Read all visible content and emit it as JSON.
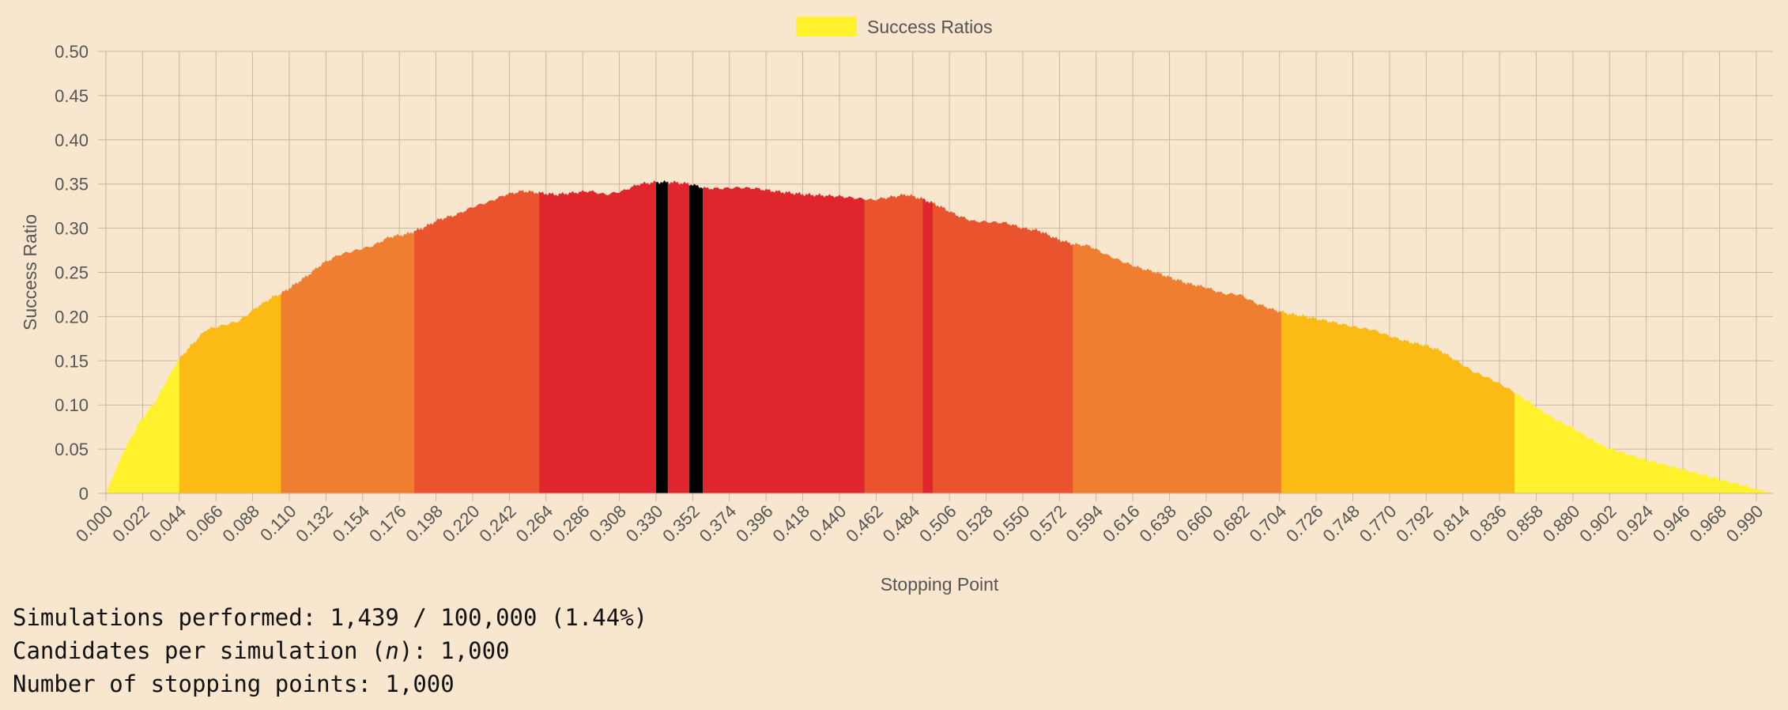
{
  "chart_data": {
    "type": "area",
    "legend": {
      "label": "Success Ratios",
      "color": "#fff12b",
      "position": "top"
    },
    "xlabel": "Stopping Point",
    "ylabel": "Success Ratio",
    "ylim": [
      0,
      0.5
    ],
    "yticks": [
      "0",
      "0.05",
      "0.10",
      "0.15",
      "0.20",
      "0.25",
      "0.30",
      "0.35",
      "0.40",
      "0.45",
      "0.50"
    ],
    "xticks": [
      "0.000",
      "0.022",
      "0.044",
      "0.066",
      "0.088",
      "0.110",
      "0.132",
      "0.154",
      "0.176",
      "0.198",
      "0.220",
      "0.242",
      "0.264",
      "0.286",
      "0.308",
      "0.330",
      "0.352",
      "0.374",
      "0.396",
      "0.418",
      "0.440",
      "0.462",
      "0.484",
      "0.506",
      "0.528",
      "0.550",
      "0.572",
      "0.594",
      "0.616",
      "0.638",
      "0.660",
      "0.682",
      "0.704",
      "0.726",
      "0.748",
      "0.770",
      "0.792",
      "0.814",
      "0.836",
      "0.858",
      "0.880",
      "0.902",
      "0.924",
      "0.946",
      "0.968",
      "0.990"
    ],
    "grid": true,
    "x_range": [
      0,
      1
    ],
    "series": [
      {
        "name": "Success Ratios",
        "x": [
          0.0,
          0.01,
          0.02,
          0.03,
          0.04,
          0.044,
          0.05,
          0.06,
          0.07,
          0.08,
          0.09,
          0.1,
          0.105,
          0.11,
          0.12,
          0.13,
          0.14,
          0.15,
          0.16,
          0.17,
          0.18,
          0.19,
          0.2,
          0.21,
          0.22,
          0.23,
          0.24,
          0.25,
          0.26,
          0.27,
          0.28,
          0.29,
          0.3,
          0.31,
          0.32,
          0.33,
          0.34,
          0.35,
          0.36,
          0.37,
          0.38,
          0.39,
          0.4,
          0.42,
          0.44,
          0.46,
          0.47,
          0.48,
          0.49,
          0.5,
          0.51,
          0.52,
          0.53,
          0.54,
          0.55,
          0.56,
          0.57,
          0.58,
          0.59,
          0.6,
          0.61,
          0.62,
          0.63,
          0.64,
          0.65,
          0.66,
          0.67,
          0.68,
          0.69,
          0.7,
          0.71,
          0.72,
          0.73,
          0.74,
          0.75,
          0.76,
          0.77,
          0.78,
          0.79,
          0.8,
          0.81,
          0.82,
          0.83,
          0.84,
          0.85,
          0.86,
          0.87,
          0.88,
          0.89,
          0.9,
          0.92,
          0.94,
          0.96,
          0.98,
          1.0
        ],
        "y": [
          0.0,
          0.045,
          0.08,
          0.105,
          0.14,
          0.152,
          0.165,
          0.185,
          0.19,
          0.195,
          0.21,
          0.222,
          0.226,
          0.232,
          0.245,
          0.26,
          0.27,
          0.275,
          0.28,
          0.29,
          0.293,
          0.3,
          0.31,
          0.315,
          0.324,
          0.33,
          0.338,
          0.342,
          0.34,
          0.338,
          0.34,
          0.342,
          0.338,
          0.342,
          0.35,
          0.352,
          0.352,
          0.35,
          0.345,
          0.345,
          0.346,
          0.345,
          0.342,
          0.338,
          0.336,
          0.332,
          0.335,
          0.338,
          0.333,
          0.325,
          0.315,
          0.308,
          0.307,
          0.306,
          0.3,
          0.297,
          0.288,
          0.282,
          0.28,
          0.27,
          0.262,
          0.255,
          0.25,
          0.243,
          0.237,
          0.233,
          0.226,
          0.225,
          0.215,
          0.208,
          0.203,
          0.2,
          0.196,
          0.192,
          0.188,
          0.185,
          0.178,
          0.172,
          0.168,
          0.162,
          0.15,
          0.138,
          0.13,
          0.12,
          0.108,
          0.095,
          0.083,
          0.074,
          0.062,
          0.052,
          0.04,
          0.03,
          0.02,
          0.01,
          0.0
        ]
      }
    ],
    "color_bands": [
      {
        "from": 0.0,
        "to": 0.044,
        "color": "#fff12b"
      },
      {
        "from": 0.044,
        "to": 0.105,
        "color": "#fbbb14"
      },
      {
        "from": 0.105,
        "to": 0.185,
        "color": "#ef7e31"
      },
      {
        "from": 0.185,
        "to": 0.19,
        "color": "#e9532e"
      },
      {
        "from": 0.19,
        "to": 0.26,
        "color": "#e9532e"
      },
      {
        "from": 0.26,
        "to": 0.33,
        "color": "#de262c"
      },
      {
        "from": 0.33,
        "to": 0.337,
        "color": "#000000"
      },
      {
        "from": 0.337,
        "to": 0.35,
        "color": "#de262c"
      },
      {
        "from": 0.35,
        "to": 0.358,
        "color": "#000000"
      },
      {
        "from": 0.358,
        "to": 0.455,
        "color": "#de262c"
      },
      {
        "from": 0.455,
        "to": 0.49,
        "color": "#e9532e"
      },
      {
        "from": 0.49,
        "to": 0.496,
        "color": "#de262c"
      },
      {
        "from": 0.496,
        "to": 0.58,
        "color": "#e9532e"
      },
      {
        "from": 0.58,
        "to": 0.705,
        "color": "#ef7e31"
      },
      {
        "from": 0.705,
        "to": 0.845,
        "color": "#fbbb14"
      },
      {
        "from": 0.845,
        "to": 1.0,
        "color": "#fff12b"
      }
    ]
  },
  "stats": {
    "simulations_label": "Simulations performed: ",
    "simulations_value": "1,439 / 100,000 (1.44%)",
    "candidates_label_pre": "Candidates per simulation (",
    "candidates_var": "n",
    "candidates_label_post": "): ",
    "candidates_value": "1,000",
    "stopping_label": "Number of stopping points: ",
    "stopping_value": "1,000"
  }
}
